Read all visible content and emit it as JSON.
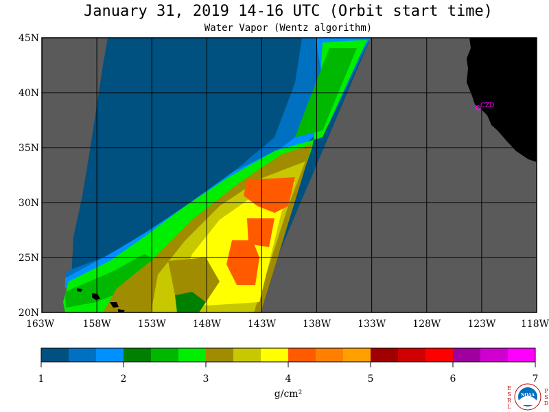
{
  "title": "January 31, 2019  14-16 UTC  (Orbit start time)",
  "subtitle": "Water Vapor (Wentz algorithm)",
  "map": {
    "lat_labels": [
      "45N",
      "40N",
      "35N",
      "30N",
      "25N",
      "20N"
    ],
    "lon_labels": [
      "163W",
      "158W",
      "153W",
      "148W",
      "143W",
      "138W",
      "133W",
      "128W",
      "123W",
      "118W"
    ],
    "lat_range": [
      20,
      45
    ],
    "lon_range": [
      -163,
      -118
    ],
    "station_label": "CZD",
    "colors": {
      "no_data": "#5a5a5a",
      "land": "#000000",
      "grid": "#000000",
      "station": "#ff00ff"
    }
  },
  "colorbar": {
    "tick_labels": [
      "1",
      "2",
      "3",
      "4",
      "5",
      "6",
      "7"
    ],
    "unit_label": "g/cm²",
    "range": [
      1,
      7
    ],
    "colors": [
      "#005080",
      "#0070c0",
      "#0090ff",
      "#008000",
      "#00b800",
      "#00ee00",
      "#a08c00",
      "#c8c800",
      "#ffff00",
      "#ff5a00",
      "#ff8000",
      "#ffa000",
      "#a00000",
      "#d00000",
      "#ff0000",
      "#a000a0",
      "#d000d0",
      "#ff00ff"
    ]
  },
  "logo": {
    "left_letters": [
      "E",
      "S",
      "R",
      "L"
    ],
    "right_letters": [
      "P",
      "S",
      "D"
    ],
    "center": "NOAA"
  }
}
